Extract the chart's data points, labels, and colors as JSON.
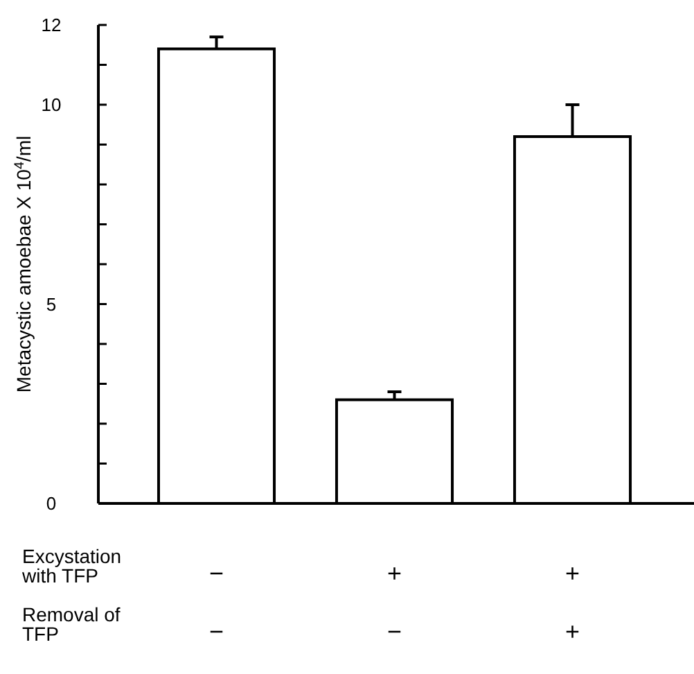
{
  "chart_data": {
    "type": "bar",
    "ylabel": "Metacystic amoebae X 10$^{4}$/ml",
    "categories": [
      "−\n−",
      "+\n−",
      "+\n+"
    ],
    "values": [
      11.4,
      2.6,
      9.2
    ],
    "errors": [
      0.3,
      0.2,
      0.8
    ],
    "color": "#ffffff",
    "ylim": [
      0,
      12
    ],
    "yticks": [
      0,
      {
        "value": 1,
        "label": null
      },
      {
        "value": 2,
        "label": null
      },
      {
        "value": 3,
        "label": null
      },
      {
        "value": 4,
        "label": null
      },
      5,
      {
        "value": 6,
        "label": null
      },
      {
        "value": 7,
        "label": null
      },
      {
        "value": 8,
        "label": null
      },
      {
        "value": 9,
        "label": null
      },
      10,
      {
        "value": 11,
        "label": null
      },
      12
    ],
    "annotations": [
      "Excystation\nwith TFP",
      "Removal of\nTFP"
    ]
  }
}
